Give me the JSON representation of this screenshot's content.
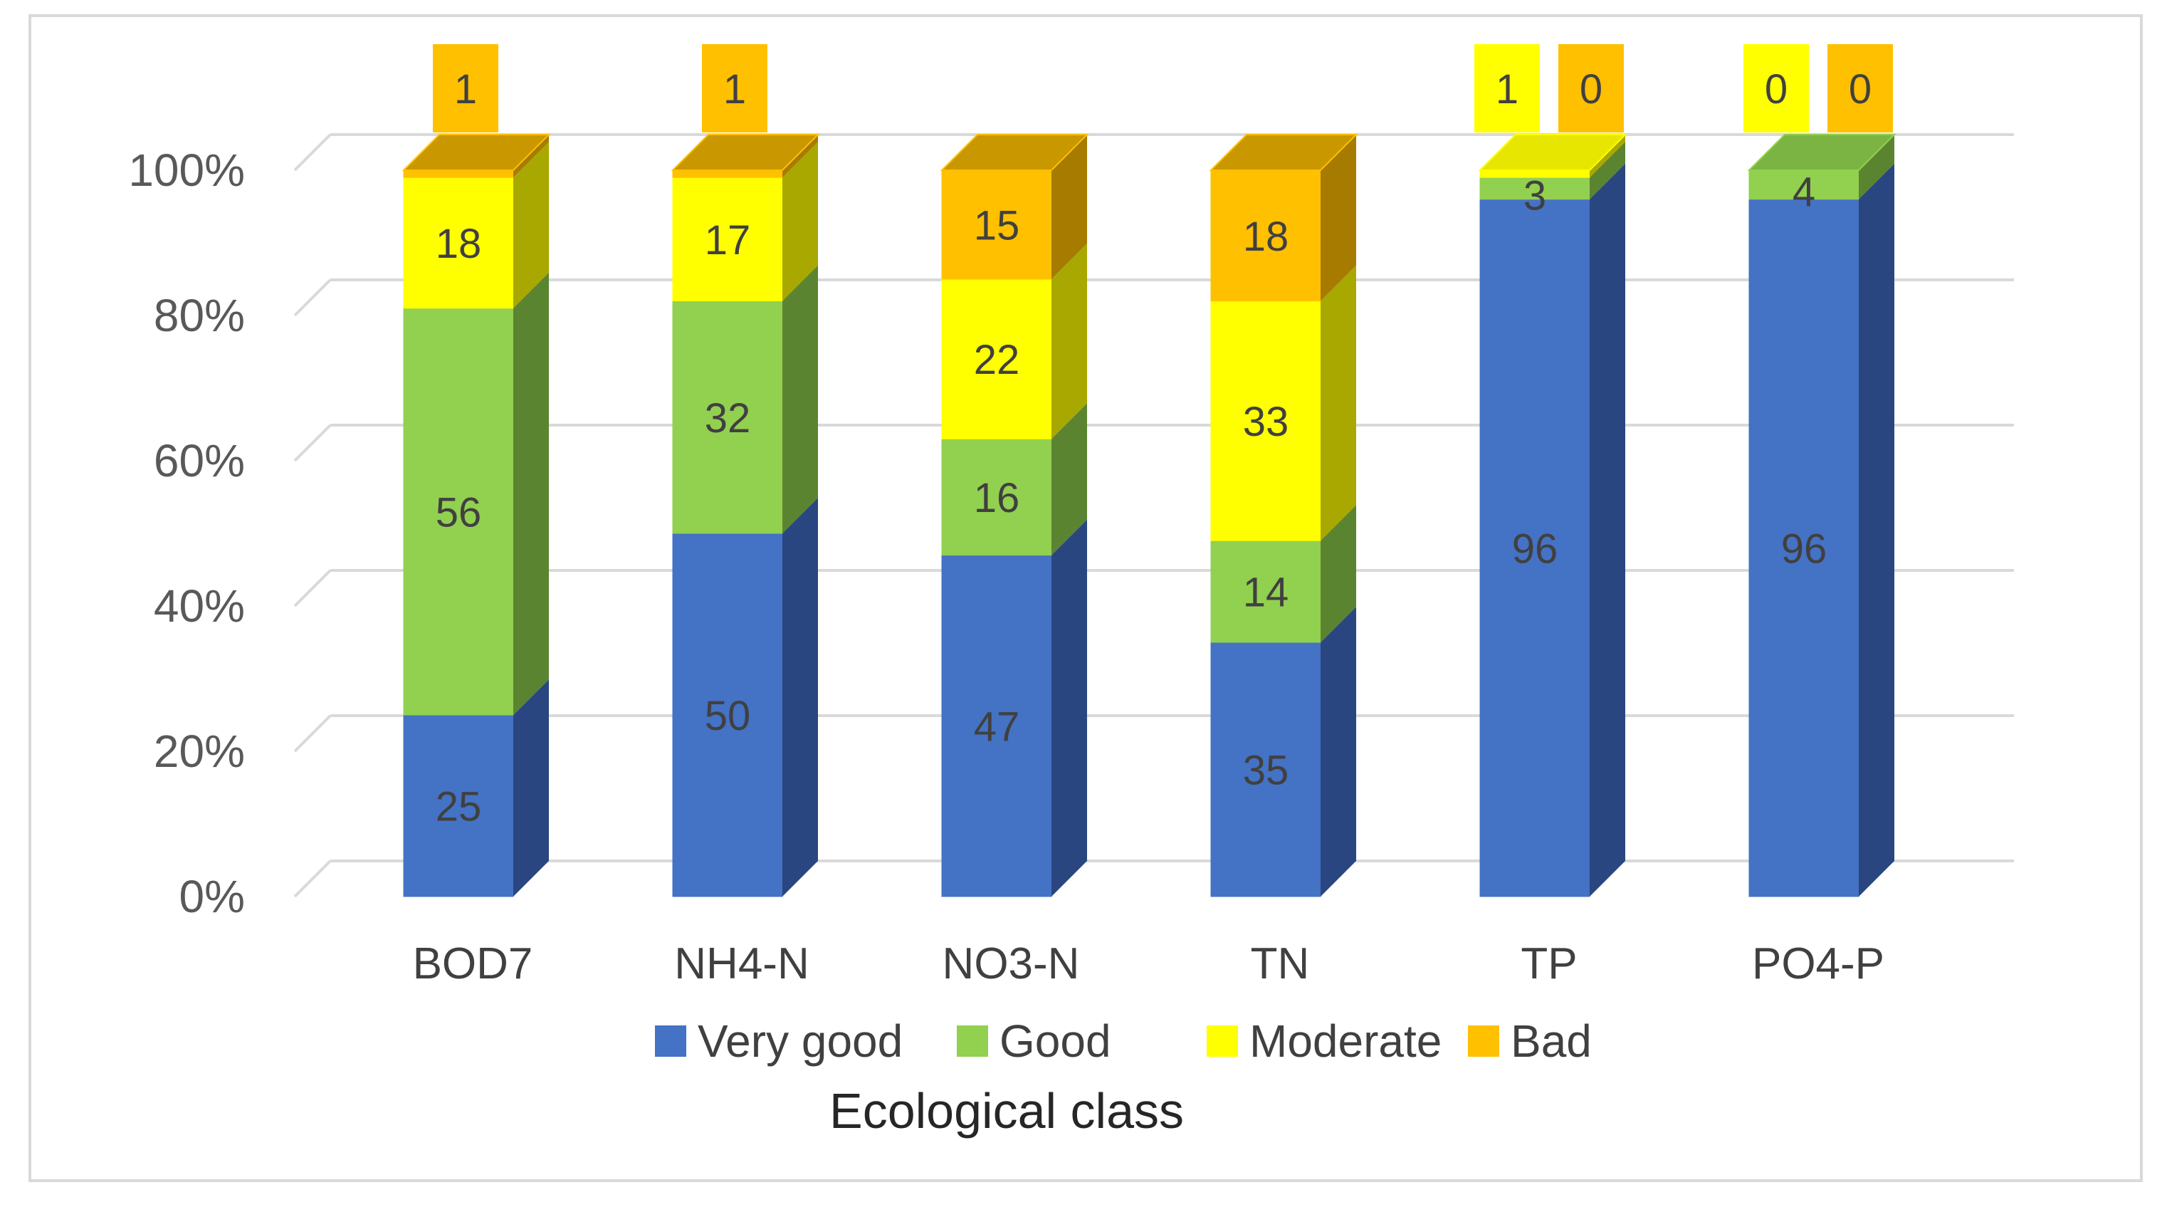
{
  "chart_data": {
    "type": "bar",
    "stacked": true,
    "three_d": true,
    "xlabel": "Ecological class",
    "ylabel": "",
    "ylim": [
      0,
      100
    ],
    "yticks": [
      "0%",
      "20%",
      "40%",
      "60%",
      "80%",
      "100%"
    ],
    "yticks_values": [
      0,
      20,
      40,
      60,
      80,
      100
    ],
    "grid": true,
    "legend_position": "bottom",
    "categories": [
      "BOD7",
      "NH4-N",
      "NO3-N",
      "TN",
      "TP",
      "PO4-P"
    ],
    "series": [
      {
        "name": "Very good",
        "color": "#4472c4",
        "side_color": "#2a4680",
        "top_color": "#3a63ad",
        "values": [
          25,
          50,
          47,
          35,
          96,
          96
        ]
      },
      {
        "name": "Good",
        "color": "#92d050",
        "side_color": "#5b8431",
        "top_color": "#7bb443",
        "values": [
          56,
          32,
          16,
          14,
          3,
          4
        ]
      },
      {
        "name": "Moderate",
        "color": "#ffff00",
        "side_color": "#a8a800",
        "top_color": "#e6e600",
        "values": [
          18,
          17,
          22,
          33,
          1,
          0
        ]
      },
      {
        "name": "Bad",
        "color": "#ffc000",
        "side_color": "#a67b00",
        "top_color": "#c99700",
        "values": [
          1,
          1,
          15,
          18,
          0,
          0
        ]
      }
    ]
  }
}
